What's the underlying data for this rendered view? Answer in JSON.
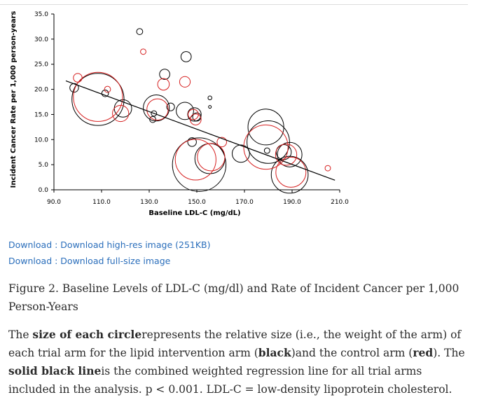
{
  "links": {
    "hires": "Download : Download high-res image (251KB)",
    "full": "Download : Download full-size image"
  },
  "caption": "Figure 2. Baseline Levels of LDL-C (mg/dl) and Rate of Incident Cancer per 1,000 Person-Years",
  "description": {
    "t1": "The ",
    "b1": "size of each circle",
    "t2": "represents the relative size (i.e., the weight of the arm) of each trial arm for the lipid intervention arm (",
    "b2": "black",
    "t3": ")and the control arm (",
    "b3": "red",
    "t4": "). The ",
    "b4": "solid black line",
    "t5": "is the combined weighted regression line for all trial arms included in the analysis. p < 0.001. LDL-C = low-density lipoprotein cholesterol."
  },
  "chart_data": {
    "type": "scatter",
    "xlabel": "Baseline LDL-C (mg/dL)",
    "ylabel": "Incident Cancer Rate per 1,000 person-years",
    "xlim": [
      90,
      210
    ],
    "ylim": [
      0,
      35
    ],
    "xticks": [
      "90.0",
      "110.0",
      "130.0",
      "150.0",
      "170.0",
      "190.0",
      "210.0"
    ],
    "yticks": [
      "0.0",
      "5.0",
      "10.0",
      "15.0",
      "20.0",
      "25.0",
      "30.0",
      "35.0"
    ],
    "colors": {
      "intervention": "#000000",
      "control": "#d62020"
    },
    "series": [
      {
        "name": "lipid intervention arm",
        "points": [
          {
            "x": 98.5,
            "y": 20.3,
            "w": 1
          },
          {
            "x": 108.5,
            "y": 18.0,
            "w": 36
          },
          {
            "x": 111.5,
            "y": 19.2,
            "w": 0.6
          },
          {
            "x": 119.0,
            "y": 16.2,
            "w": 4
          },
          {
            "x": 126.0,
            "y": 31.5,
            "w": 0.5
          },
          {
            "x": 131.5,
            "y": 14.0,
            "w": 0.5
          },
          {
            "x": 132.0,
            "y": 15.2,
            "w": 0.4
          },
          {
            "x": 133.0,
            "y": 16.3,
            "w": 9
          },
          {
            "x": 136.5,
            "y": 23.0,
            "w": 1.4
          },
          {
            "x": 139.0,
            "y": 16.5,
            "w": 0.8
          },
          {
            "x": 145.5,
            "y": 26.5,
            "w": 1.4
          },
          {
            "x": 145.0,
            "y": 15.7,
            "w": 4
          },
          {
            "x": 148.0,
            "y": 9.5,
            "w": 1
          },
          {
            "x": 149.0,
            "y": 15.0,
            "w": 2.4
          },
          {
            "x": 150.0,
            "y": 14.5,
            "w": 0.9
          },
          {
            "x": 151.0,
            "y": 5.0,
            "w": 38
          },
          {
            "x": 155.5,
            "y": 6.2,
            "w": 12
          },
          {
            "x": 155.5,
            "y": 18.3,
            "w": 0.2
          },
          {
            "x": 155.5,
            "y": 16.5,
            "w": 0.1
          },
          {
            "x": 168.5,
            "y": 7.2,
            "w": 4
          },
          {
            "x": 179.0,
            "y": 12.5,
            "w": 17
          },
          {
            "x": 179.5,
            "y": 7.8,
            "w": 0.4
          },
          {
            "x": 180.0,
            "y": 9.5,
            "w": 24
          },
          {
            "x": 186.5,
            "y": 7.5,
            "w": 3
          },
          {
            "x": 189.0,
            "y": 7.0,
            "w": 8
          },
          {
            "x": 189.0,
            "y": 3.0,
            "w": 18
          }
        ]
      },
      {
        "name": "control arm",
        "points": [
          {
            "x": 100.0,
            "y": 22.3,
            "w": 1
          },
          {
            "x": 108.5,
            "y": 18.5,
            "w": 32
          },
          {
            "x": 112.5,
            "y": 20.0,
            "w": 0.5
          },
          {
            "x": 118.0,
            "y": 15.2,
            "w": 3.5
          },
          {
            "x": 127.5,
            "y": 27.5,
            "w": 0.4
          },
          {
            "x": 133.5,
            "y": 16.0,
            "w": 6
          },
          {
            "x": 136.0,
            "y": 21.0,
            "w": 1.8
          },
          {
            "x": 145.0,
            "y": 21.5,
            "w": 1.5
          },
          {
            "x": 148.5,
            "y": 15.0,
            "w": 1.4
          },
          {
            "x": 149.5,
            "y": 14.0,
            "w": 1.6
          },
          {
            "x": 149.5,
            "y": 6.0,
            "w": 22
          },
          {
            "x": 156.0,
            "y": 6.5,
            "w": 10
          },
          {
            "x": 160.5,
            "y": 9.5,
            "w": 1.2
          },
          {
            "x": 179.0,
            "y": 8.5,
            "w": 26
          },
          {
            "x": 187.5,
            "y": 7.0,
            "w": 6
          },
          {
            "x": 189.5,
            "y": 3.5,
            "w": 12
          },
          {
            "x": 205.0,
            "y": 4.3,
            "w": 0.4
          }
        ]
      }
    ],
    "regression_line": [
      {
        "x": 95,
        "y": 21.7
      },
      {
        "x": 208,
        "y": 1.9
      }
    ]
  }
}
